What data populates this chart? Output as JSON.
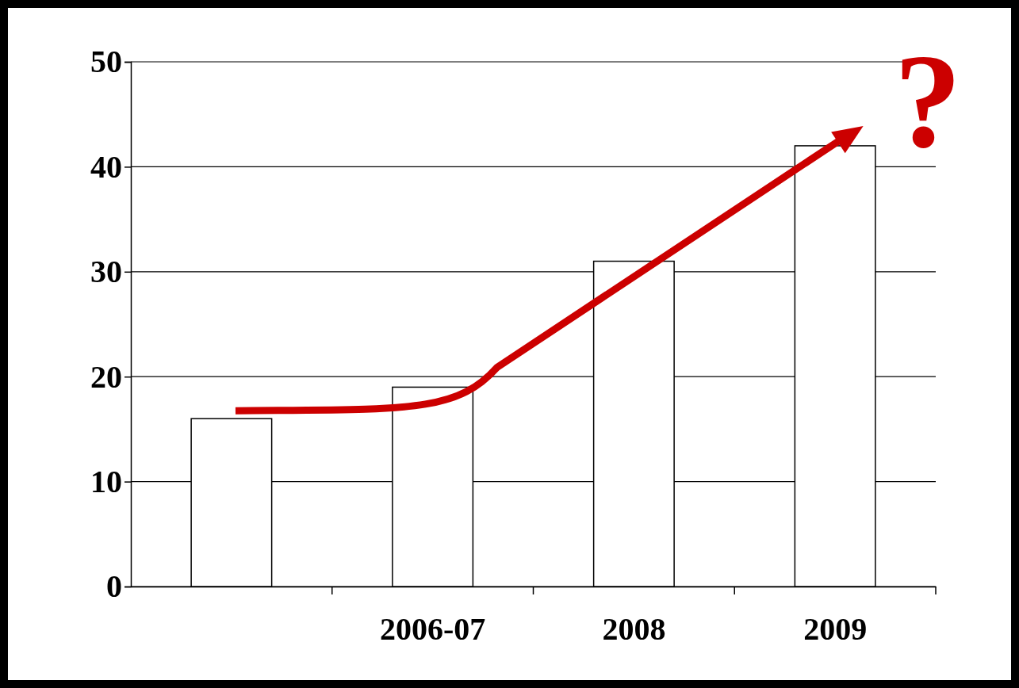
{
  "chart_data": {
    "type": "bar",
    "categories": [
      null,
      "2006-07",
      "2008",
      "2009"
    ],
    "values": [
      16,
      19,
      31,
      42
    ],
    "color": "#ffffff",
    "ylim": [
      0,
      50
    ],
    "yticks": [
      0,
      10,
      20,
      30,
      40,
      50
    ],
    "grid": "y",
    "annotations": [
      "?"
    ]
  }
}
